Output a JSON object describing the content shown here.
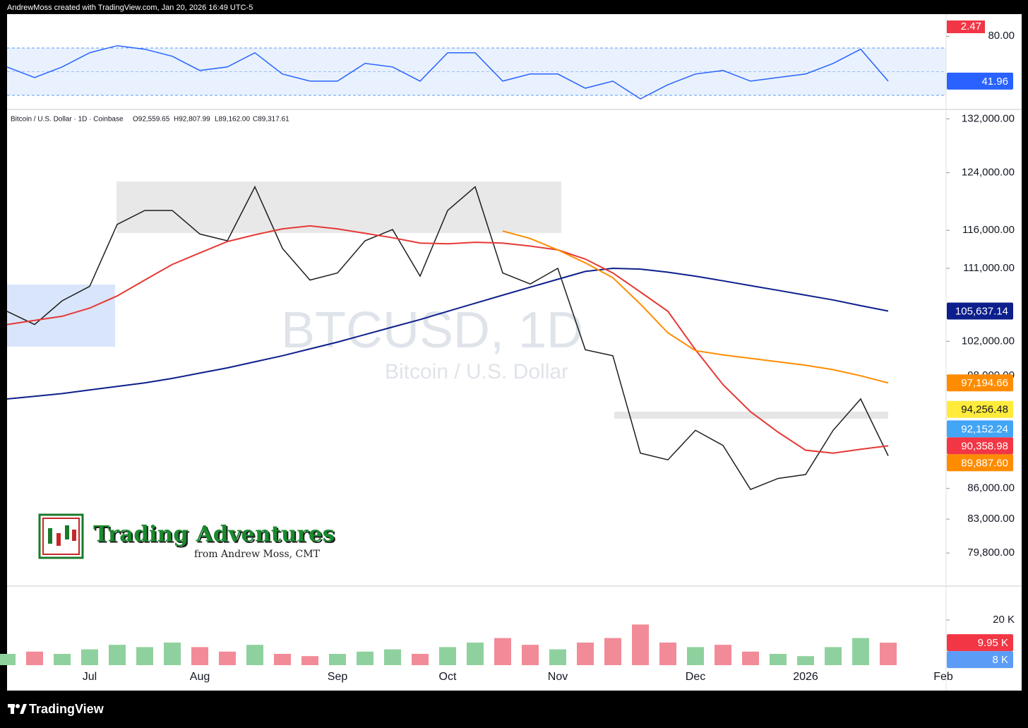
{
  "header": {
    "credit": "AndrewMoss created with TradingView.com, Jan 20, 2026 16:49 UTC-5"
  },
  "footer": {
    "brand": "TradingView"
  },
  "logo": {
    "title": "Trading Adventures",
    "subtitle": "from Andrew Moss, CMT"
  },
  "chart_data": [
    {
      "type": "line",
      "color": "#2962ff",
      "values": [
        53.9,
        45,
        54,
        66,
        72,
        69,
        63,
        51,
        54,
        66,
        48,
        42,
        42,
        57,
        54,
        42,
        66,
        66,
        42,
        48,
        48,
        36,
        42,
        27,
        39,
        48,
        51,
        42,
        45,
        48,
        57,
        69,
        41.96,
        null,
        null
      ],
      "ylim": [
        21,
        95.7
      ],
      "yticks": [
        {
          "value": 80,
          "label": "80.00"
        }
      ],
      "band": [
        30,
        70
      ],
      "midline": 50,
      "tags": [
        {
          "value": 41.96,
          "label": "41.96",
          "color": "#2962ff"
        }
      ],
      "extra_tag_label": "2.47"
    },
    {
      "type": "line",
      "title": "Bitcoin / U.S. Dollar · 1D · Coinbase",
      "ohlc_labels": [
        "O92,559.65",
        "H92,807.99",
        "L89,162.00",
        "C89,317.61"
      ],
      "watermark": "BTCUSD, 1D",
      "watermark_subtitle": "Bitcoin / U.S. Dollar",
      "categories": [
        null,
        null,
        null,
        "Jul",
        null,
        null,
        null,
        "Aug",
        null,
        null,
        null,
        null,
        "Sep",
        null,
        null,
        null,
        "Oct",
        null,
        null,
        null,
        "Nov",
        null,
        null,
        null,
        null,
        "Dec",
        null,
        null,
        null,
        "2026",
        null,
        null,
        null,
        null,
        "Feb"
      ],
      "log_scale": true,
      "ylim": [
        76800,
        132900
      ],
      "yticks": [
        {
          "value": 132000,
          "label": "132,000.00"
        },
        {
          "value": 124000,
          "label": "124,000.00"
        },
        {
          "value": 116000,
          "label": "116,000.00"
        },
        {
          "value": 111000,
          "label": "111,000.00"
        },
        {
          "value": 102000,
          "label": "102,000.00"
        },
        {
          "value": 98000,
          "label": "98,000.00"
        },
        {
          "value": 86000,
          "label": "86,000.00"
        },
        {
          "value": 83000,
          "label": "83,000.00"
        },
        {
          "value": 79800,
          "label": "79,800.00"
        }
      ],
      "series": [
        {
          "color": "#1e1e1e",
          "values": [
            105600,
            104000,
            106900,
            108700,
            116800,
            118700,
            118700,
            115500,
            114600,
            122000,
            113600,
            109500,
            110400,
            114600,
            116100,
            110000,
            118700,
            122000,
            110400,
            109000,
            111000,
            101000,
            100300,
            89600,
            88900,
            92000,
            90400,
            85900,
            87000,
            87400,
            92000,
            95400,
            89317.61,
            null,
            null
          ]
        },
        {
          "color": "#0d1f8c",
          "values": [
            95400,
            95700,
            96000,
            96400,
            96800,
            97200,
            97700,
            98300,
            98900,
            99600,
            100300,
            101100,
            101900,
            102800,
            103700,
            104600,
            105600,
            106600,
            107600,
            108600,
            109600,
            110600,
            111000,
            110900,
            110500,
            110000,
            109400,
            108800,
            108200,
            107600,
            107000,
            106300,
            105637.14,
            null,
            null
          ]
        },
        {
          "color": "#e53935",
          "values": [
            104000,
            104500,
            105000,
            106000,
            107500,
            109500,
            111500,
            113000,
            114500,
            115400,
            116200,
            116600,
            116200,
            115600,
            115000,
            114300,
            114200,
            114400,
            114300,
            113900,
            113400,
            112200,
            110400,
            108000,
            105600,
            101000,
            97000,
            94000,
            91800,
            89900,
            89600,
            90000,
            90358.98,
            null,
            null
          ]
        },
        {
          "color": "#ff8c00",
          "values": [
            null,
            null,
            null,
            null,
            null,
            null,
            null,
            null,
            null,
            null,
            null,
            null,
            null,
            null,
            null,
            null,
            null,
            null,
            115900,
            114900,
            113400,
            111700,
            109800,
            106500,
            103000,
            100900,
            100400,
            100000,
            99600,
            99200,
            98700,
            98000,
            97194.66,
            null,
            null
          ]
        }
      ],
      "tags": [
        {
          "value": 105637.14,
          "label": "105,637.14",
          "color": "#0d1f8c"
        },
        {
          "value": 97194.66,
          "label": "97,194.66",
          "color": "#ff8c00"
        },
        {
          "value": 94256.48,
          "label": "94,256.48",
          "color": "#ffeb3b"
        },
        {
          "value": 92152.24,
          "label": "92,152.24",
          "color": "#42a5f5"
        },
        {
          "value": 90358.98,
          "label": "90,358.98",
          "color": "#f23645"
        },
        {
          "value": 89887.6,
          "label": "89,887.60",
          "color": "#ff8c00"
        }
      ]
    },
    {
      "type": "bar",
      "up_color": "#8fd19e",
      "down_color": "#f28b98",
      "values": [
        5,
        6,
        5,
        7,
        9,
        8,
        10,
        8,
        6,
        9,
        5,
        4,
        5,
        6,
        7,
        5,
        8,
        10,
        12,
        9,
        7,
        10,
        12,
        18,
        10,
        8,
        9,
        6,
        5,
        4,
        8,
        12,
        9.95,
        null,
        null
      ],
      "ylim": [
        0,
        35
      ],
      "yticks": [
        {
          "value": 20,
          "label": "20 K"
        }
      ],
      "tags": [
        {
          "value": 9.95,
          "label": "9.95 K",
          "color": "#f23645"
        },
        {
          "value": 8,
          "label": "8 K",
          "color": "#5b9cf6"
        }
      ]
    }
  ]
}
